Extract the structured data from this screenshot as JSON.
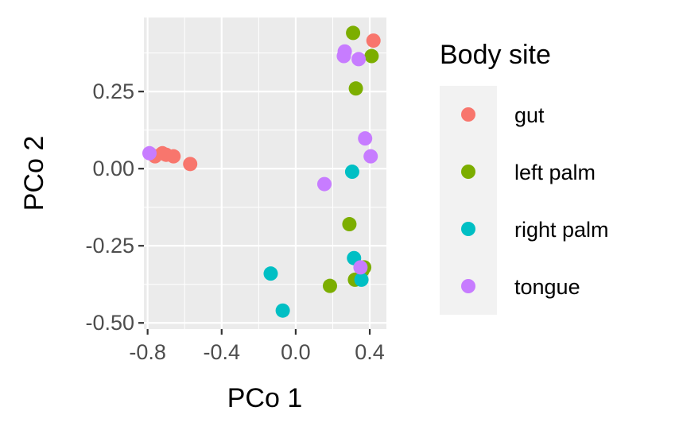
{
  "chart_data": {
    "type": "scatter",
    "xlabel": "PCo 1",
    "ylabel": "PCo 2",
    "xlim": [
      -0.82,
      0.49
    ],
    "ylim": [
      -0.52,
      0.49
    ],
    "x_ticks": [
      -0.8,
      -0.4,
      0.0,
      0.4
    ],
    "x_tick_labels": [
      "-0.8",
      "-0.4",
      "0.0",
      "0.4"
    ],
    "y_ticks": [
      -0.5,
      -0.25,
      0.0,
      0.25
    ],
    "y_tick_labels": [
      "-0.50",
      "-0.25",
      "0.00",
      "0.25"
    ],
    "grid": true,
    "legend": {
      "title": "Body site",
      "position": "right"
    },
    "series": [
      {
        "name": "gut",
        "color": "#F8766D",
        "points": [
          {
            "x": 0.42,
            "y": 0.415
          },
          {
            "x": -0.76,
            "y": 0.04
          },
          {
            "x": -0.72,
            "y": 0.05
          },
          {
            "x": -0.7,
            "y": 0.045
          },
          {
            "x": -0.66,
            "y": 0.04
          },
          {
            "x": -0.57,
            "y": 0.015
          }
        ]
      },
      {
        "name": "left palm",
        "color": "#7CAE00",
        "points": [
          {
            "x": 0.31,
            "y": 0.44
          },
          {
            "x": 0.41,
            "y": 0.365
          },
          {
            "x": 0.325,
            "y": 0.26
          },
          {
            "x": 0.29,
            "y": -0.18
          },
          {
            "x": 0.37,
            "y": -0.32
          },
          {
            "x": 0.36,
            "y": -0.33
          },
          {
            "x": 0.32,
            "y": -0.36
          },
          {
            "x": 0.185,
            "y": -0.38
          }
        ]
      },
      {
        "name": "right palm",
        "color": "#00BFC4",
        "points": [
          {
            "x": 0.305,
            "y": -0.01
          },
          {
            "x": 0.315,
            "y": -0.29
          },
          {
            "x": 0.355,
            "y": -0.36
          },
          {
            "x": -0.135,
            "y": -0.34
          },
          {
            "x": -0.07,
            "y": -0.46
          }
        ]
      },
      {
        "name": "tongue",
        "color": "#C77CFF",
        "points": [
          {
            "x": 0.265,
            "y": 0.38
          },
          {
            "x": 0.26,
            "y": 0.365
          },
          {
            "x": 0.34,
            "y": 0.355
          },
          {
            "x": 0.375,
            "y": 0.098
          },
          {
            "x": 0.405,
            "y": 0.04
          },
          {
            "x": 0.155,
            "y": -0.05
          },
          {
            "x": -0.79,
            "y": 0.05
          },
          {
            "x": 0.35,
            "y": -0.32
          }
        ]
      }
    ]
  }
}
